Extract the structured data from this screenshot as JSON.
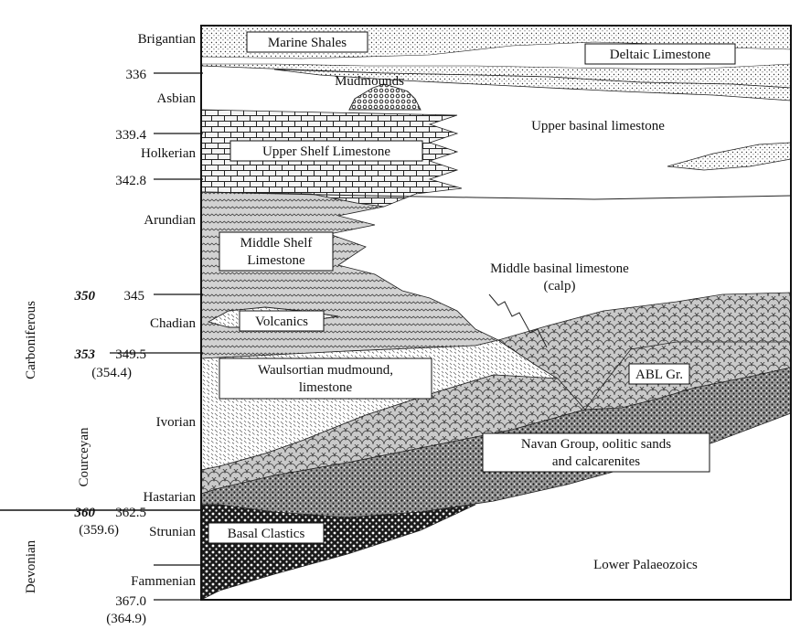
{
  "stages": {
    "brigantian": "Brigantian",
    "asbian": "Asbian",
    "holkerian": "Holkerian",
    "arundian": "Arundian",
    "chadian": "Chadian",
    "ivorian": "Ivorian",
    "hastarian": "Hastarian",
    "strunian": "Strunian",
    "fammenian": "Fammenian"
  },
  "ages": {
    "a336": "336",
    "a339_4": "339.4",
    "a342_8": "342.8",
    "a345": "345",
    "a349_5": "349.5",
    "a354_4": "(354.4)",
    "a362_5": "362.5",
    "a359_6": "(359.6)",
    "a367_0": "367.0",
    "a364_9": "(364.9)",
    "b350": "350",
    "b353": "353",
    "b360": "360"
  },
  "periods": {
    "carboniferous": "Carboniferous",
    "courceyan": "Courceyan",
    "devonian": "Devonian"
  },
  "units": {
    "marine_shales": "Marine Shales",
    "deltaic_limestone": "Deltaic Limestone",
    "mudmounds": "Mudmounds",
    "upper_basinal": "Upper basinal limestone",
    "upper_shelf": "Upper Shelf Limestone",
    "middle_shelf_1": "Middle Shelf",
    "middle_shelf_2": "Limestone",
    "middle_basinal_1": "Middle basinal limestone",
    "middle_basinal_2": "(calp)",
    "volcanics": "Volcanics",
    "waulsortian_1": "Waulsortian mudmound,",
    "waulsortian_2": "limestone",
    "abl": "ABL Gr.",
    "navan_1": "Navan Group, oolitic sands",
    "navan_2": "and calcarenites",
    "basal_clastics": "Basal Clastics",
    "lower_palaeozoics": "Lower Palaeozoics"
  }
}
